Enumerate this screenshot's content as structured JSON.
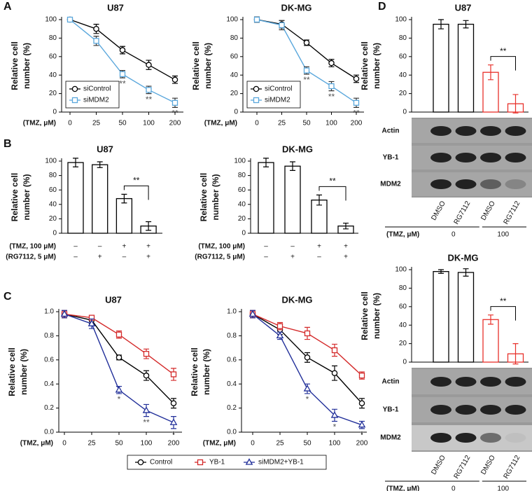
{
  "chart_data": [
    {
      "type": "line",
      "panel": "A",
      "title": "U87",
      "ylabel": [
        "Relative cell",
        "number (%)"
      ],
      "xlabel": "(TMZ, μM)",
      "categories": [
        "0",
        "25",
        "50",
        "100",
        "200"
      ],
      "ylim": [
        0,
        100
      ],
      "yticks": [
        0,
        20,
        40,
        60,
        80,
        100
      ],
      "legend": "lower left",
      "series": [
        {
          "name": "siControl",
          "color": "#000000",
          "marker": "circle",
          "values": [
            100,
            90,
            67,
            51,
            35
          ],
          "errors": [
            2,
            5,
            4,
            5,
            4
          ]
        },
        {
          "name": "siMDM2",
          "color": "#5aa7dc",
          "marker": "square",
          "values": [
            100,
            77,
            41,
            24,
            10
          ],
          "errors": [
            2,
            5,
            4,
            4,
            5
          ],
          "significance": [
            null,
            null,
            "**",
            "**",
            "**"
          ]
        }
      ]
    },
    {
      "type": "line",
      "title": "DK-MG",
      "ylabel": [
        "Relative cell",
        "number (%)"
      ],
      "xlabel": "(TMZ, μM)",
      "categories": [
        "0",
        "25",
        "50",
        "100",
        "200"
      ],
      "ylim": [
        0,
        100
      ],
      "yticks": [
        0,
        20,
        40,
        60,
        80,
        100
      ],
      "legend": "lower left",
      "series": [
        {
          "name": "siControl",
          "color": "#000000",
          "marker": "circle",
          "values": [
            100,
            95,
            75,
            53,
            36
          ],
          "errors": [
            3,
            4,
            3,
            4,
            4
          ]
        },
        {
          "name": "siMDM2",
          "color": "#5aa7dc",
          "marker": "square",
          "values": [
            100,
            94,
            45,
            28,
            10
          ],
          "errors": [
            3,
            5,
            4,
            5,
            5
          ],
          "significance": [
            null,
            null,
            "**",
            "**",
            "**"
          ]
        }
      ]
    },
    {
      "type": "bar",
      "panel": "B",
      "title": "U87",
      "ylabel": [
        "Relative cell",
        "number (%)"
      ],
      "values": [
        98,
        95,
        48,
        10
      ],
      "errors": [
        6,
        4,
        6,
        6
      ],
      "edgecolors": [
        "#000000",
        "#000000",
        "#000000",
        "#000000"
      ],
      "bracket": "**",
      "ylim": [
        0,
        100
      ],
      "yticks": [
        0,
        20,
        40,
        60,
        80,
        100
      ],
      "rows": [
        {
          "label": "(TMZ, 100 μM)",
          "values": [
            "–",
            "–",
            "+",
            "+"
          ]
        },
        {
          "label": "(RG7112, 5 μM)",
          "values": [
            "–",
            "+",
            "–",
            "+"
          ]
        }
      ]
    },
    {
      "type": "bar",
      "title": "DK-MG",
      "ylabel": [
        "Relative cell",
        "number (%)"
      ],
      "values": [
        98,
        93,
        46,
        10
      ],
      "errors": [
        6,
        6,
        7,
        4
      ],
      "edgecolors": [
        "#000000",
        "#000000",
        "#000000",
        "#000000"
      ],
      "bracket": "**",
      "ylim": [
        0,
        100
      ],
      "yticks": [
        0,
        20,
        40,
        60,
        80,
        100
      ],
      "rows": [
        {
          "label": "(TMZ, 100 μM)",
          "values": [
            "–",
            "–",
            "+",
            "+"
          ]
        },
        {
          "label": "(RG7112, 5 μM)",
          "values": [
            "–",
            "+",
            "–",
            "+"
          ]
        }
      ]
    },
    {
      "type": "line",
      "panel": "C",
      "title": "U87",
      "ylabel": [
        "Relative cell",
        "number (%)"
      ],
      "xlabel": "(TMZ, μM)",
      "categories": [
        "0",
        "25",
        "50",
        "100",
        "200"
      ],
      "ylim": [
        0,
        1
      ],
      "legend": "below",
      "yticks": [
        {
          "value": 0,
          "label": "0.0"
        },
        {
          "value": 0.2,
          "label": "0.2"
        },
        {
          "value": 0.4,
          "label": "0.4"
        },
        {
          "value": 0.6,
          "label": "0.6"
        },
        {
          "value": 0.8,
          "label": "0.8"
        },
        {
          "value": 1,
          "label": "1.0"
        }
      ],
      "series": [
        {
          "name": "Control",
          "color": "#000000",
          "marker": "circle",
          "values": [
            0.98,
            0.93,
            0.62,
            0.47,
            0.24
          ],
          "errors": [
            0.03,
            0.03,
            0.02,
            0.04,
            0.04
          ]
        },
        {
          "name": "YB-1",
          "color": "#d42a2a",
          "marker": "square",
          "values": [
            0.98,
            0.95,
            0.81,
            0.65,
            0.48
          ],
          "errors": [
            0.03,
            0.02,
            0.03,
            0.04,
            0.05
          ]
        },
        {
          "name": "siMDM2+YB-1",
          "color": "#22309a",
          "marker": "triangle",
          "values": [
            0.98,
            0.9,
            0.35,
            0.18,
            0.08
          ],
          "errors": [
            0.03,
            0.04,
            0.03,
            0.05,
            0.05
          ],
          "significance": [
            null,
            null,
            "*",
            "**",
            "*"
          ]
        }
      ]
    },
    {
      "type": "line",
      "title": "DK-MG",
      "ylabel": [
        "Relative cell",
        "number (%)"
      ],
      "xlabel": "(TMZ, μM)",
      "categories": [
        "0",
        "25",
        "50",
        "100",
        "200"
      ],
      "ylim": [
        0,
        1
      ],
      "yticks": [
        {
          "value": 0,
          "label": "0.0"
        },
        {
          "value": 0.2,
          "label": "0.2"
        },
        {
          "value": 0.4,
          "label": "0.4"
        },
        {
          "value": 0.6,
          "label": "0.6"
        },
        {
          "value": 0.8,
          "label": "0.8"
        },
        {
          "value": 1,
          "label": "1.0"
        }
      ],
      "series": [
        {
          "color": "#000000",
          "marker": "circle",
          "values": [
            0.98,
            0.85,
            0.62,
            0.49,
            0.24
          ],
          "errors": [
            0.03,
            0.04,
            0.04,
            0.06,
            0.04
          ]
        },
        {
          "color": "#d42a2a",
          "marker": "square",
          "values": [
            0.98,
            0.88,
            0.82,
            0.68,
            0.47
          ],
          "errors": [
            0.03,
            0.03,
            0.05,
            0.05,
            0.03
          ]
        },
        {
          "color": "#22309a",
          "marker": "triangle",
          "values": [
            0.98,
            0.8,
            0.36,
            0.14,
            0.06
          ],
          "errors": [
            0.03,
            0.03,
            0.04,
            0.05,
            0.03
          ],
          "significance": [
            null,
            null,
            "*",
            "*",
            "*"
          ]
        }
      ]
    },
    {
      "type": "bar",
      "panel": "D",
      "title": "U87",
      "ylabel": [
        "Relative cell",
        "number (%)"
      ],
      "categories": [
        "DMSO",
        "RG7112",
        "DMSO",
        "RG7112"
      ],
      "values": [
        95,
        95,
        43,
        9
      ],
      "errors": [
        5,
        4,
        8,
        10
      ],
      "edgecolors": [
        "#000000",
        "#000000",
        "#e8302a",
        "#e8302a"
      ],
      "bracket": "**",
      "ylim": [
        0,
        100
      ],
      "yticks": [
        0,
        20,
        40,
        60,
        80,
        100
      ],
      "blots": [
        "Actin",
        "YB-1",
        "MDM2"
      ],
      "group_title": "(TMZ, μM)",
      "group_labels": [
        "0",
        "100"
      ]
    },
    {
      "type": "bar",
      "title": "DK-MG",
      "ylabel": [
        "Relative cell",
        "number (%)"
      ],
      "categories": [
        "DMSO",
        "RG7112",
        "DMSO",
        "RG7112"
      ],
      "values": [
        98,
        97,
        46,
        9
      ],
      "errors": [
        2,
        4,
        5,
        11
      ],
      "edgecolors": [
        "#000000",
        "#000000",
        "#e8302a",
        "#e8302a"
      ],
      "bracket": "**",
      "ylim": [
        0,
        100
      ],
      "yticks": [
        0,
        20,
        40,
        60,
        80,
        100
      ],
      "blots": [
        "Actin",
        "YB-1",
        "MDM2"
      ],
      "group_title": "(TMZ, μM)",
      "group_labels": [
        "0",
        "100"
      ]
    }
  ]
}
